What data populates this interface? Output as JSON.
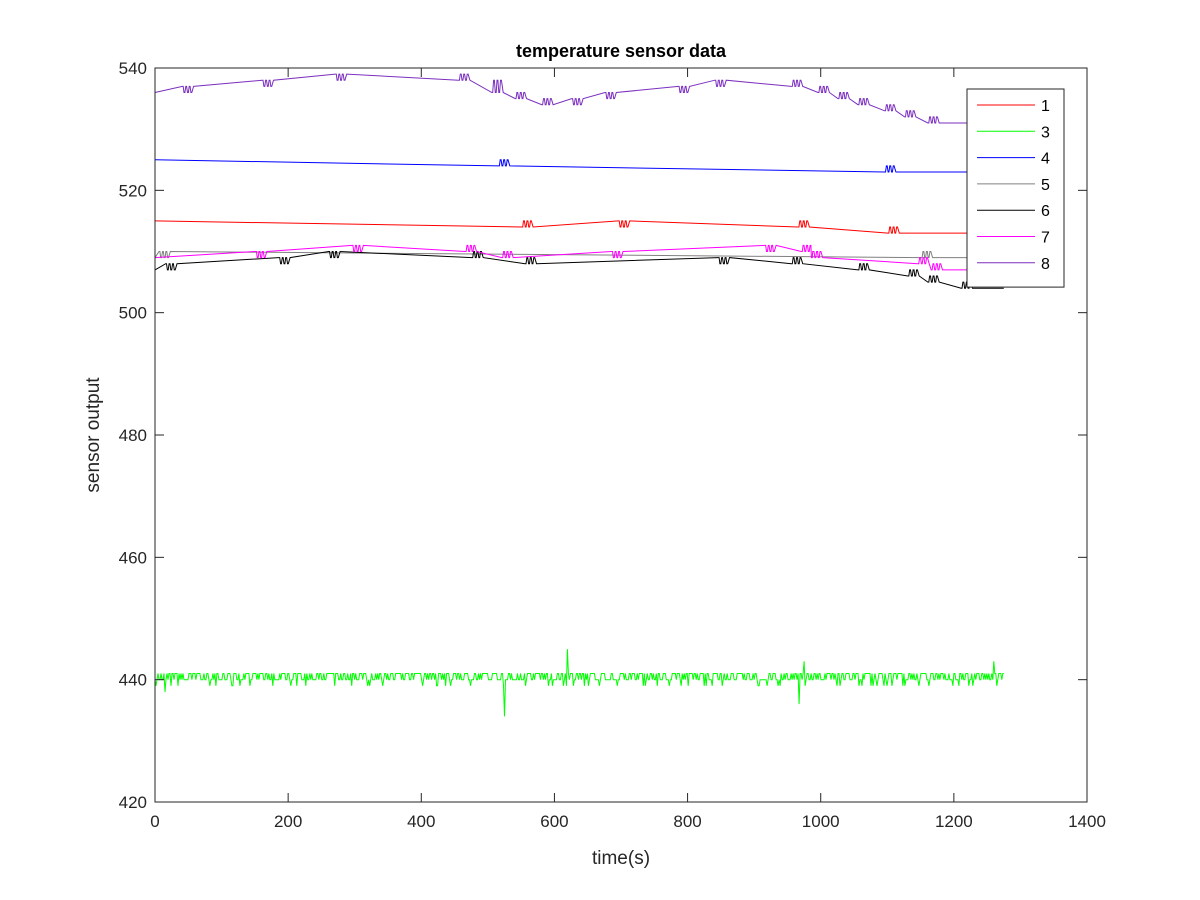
{
  "chart_data": {
    "type": "line",
    "title": "temperature sensor data",
    "xlabel": "time(s)",
    "ylabel": "sensor output",
    "xlim": [
      0,
      1400
    ],
    "ylim": [
      420,
      540
    ],
    "xticks": [
      0,
      200,
      400,
      600,
      800,
      1000,
      1200,
      1400
    ],
    "yticks": [
      420,
      440,
      460,
      480,
      500,
      520,
      540
    ],
    "grid": false,
    "legend_position": "top-right",
    "series": [
      {
        "name": "1",
        "color": "#ff0000",
        "points": [
          [
            0,
            515
          ],
          [
            565,
            515
          ],
          [
            568,
            514
          ],
          [
            710,
            514
          ],
          [
            713,
            515
          ],
          [
            980,
            515
          ],
          [
            983,
            514
          ],
          [
            1115,
            514
          ],
          [
            1118,
            513
          ],
          [
            1275,
            513
          ]
        ],
        "noise": {
          "x_from": 555,
          "x_to": 575,
          "delta": -1
        }
      },
      {
        "name": "3",
        "color": "#00ff00",
        "base": 441,
        "jitter_low": 439,
        "x_start": 0,
        "x_end": 1275,
        "spikes": [
          [
            15,
            438
          ],
          [
            355,
            437
          ],
          [
            460,
            437
          ],
          [
            525,
            434
          ],
          [
            620,
            445
          ],
          [
            760,
            445
          ],
          [
            898,
            433
          ],
          [
            968,
            436
          ],
          [
            975,
            443
          ],
          [
            1260,
            443
          ]
        ]
      },
      {
        "name": "4",
        "color": "#0000ff",
        "points": [
          [
            0,
            525
          ],
          [
            530,
            525
          ],
          [
            533,
            524
          ],
          [
            1110,
            524
          ],
          [
            1113,
            523
          ],
          [
            1275,
            523
          ]
        ]
      },
      {
        "name": "5",
        "color": "#808080",
        "points": [
          [
            0,
            509
          ],
          [
            20,
            509
          ],
          [
            23,
            510
          ],
          [
            1165,
            510
          ],
          [
            1168,
            509
          ],
          [
            1275,
            509
          ]
        ]
      },
      {
        "name": "6",
        "color": "#000000",
        "points": [
          [
            0,
            507
          ],
          [
            30,
            507
          ],
          [
            33,
            508
          ],
          [
            200,
            508
          ],
          [
            203,
            509
          ],
          [
            275,
            509
          ],
          [
            278,
            510
          ],
          [
            490,
            510
          ],
          [
            493,
            509
          ],
          [
            570,
            509
          ],
          [
            573,
            508
          ],
          [
            860,
            508
          ],
          [
            863,
            509
          ],
          [
            970,
            509
          ],
          [
            973,
            508
          ],
          [
            1070,
            508
          ],
          [
            1073,
            507
          ],
          [
            1145,
            507
          ],
          [
            1148,
            506
          ],
          [
            1175,
            506
          ],
          [
            1178,
            505
          ],
          [
            1225,
            505
          ],
          [
            1228,
            504
          ],
          [
            1275,
            504
          ]
        ]
      },
      {
        "name": "7",
        "color": "#ff00ff",
        "points": [
          [
            0,
            509
          ],
          [
            165,
            509
          ],
          [
            168,
            510
          ],
          [
            310,
            510
          ],
          [
            313,
            511
          ],
          [
            480,
            511
          ],
          [
            483,
            510
          ],
          [
            535,
            510
          ],
          [
            538,
            509
          ],
          [
            700,
            509
          ],
          [
            703,
            510
          ],
          [
            930,
            510
          ],
          [
            933,
            511
          ],
          [
            985,
            511
          ],
          [
            988,
            510
          ],
          [
            1000,
            510
          ],
          [
            1003,
            509
          ],
          [
            1160,
            509
          ],
          [
            1163,
            508
          ],
          [
            1180,
            508
          ],
          [
            1183,
            507
          ],
          [
            1275,
            507
          ]
        ]
      },
      {
        "name": "8",
        "color": "#7b2fbe",
        "points": [
          [
            0,
            536
          ],
          [
            55,
            536
          ],
          [
            58,
            537
          ],
          [
            175,
            537
          ],
          [
            178,
            538
          ],
          [
            285,
            538
          ],
          [
            288,
            539
          ],
          [
            470,
            539
          ],
          [
            473,
            538
          ],
          [
            520,
            538
          ],
          [
            523,
            536
          ],
          [
            555,
            536
          ],
          [
            558,
            535
          ],
          [
            595,
            535
          ],
          [
            598,
            534
          ],
          [
            640,
            534
          ],
          [
            643,
            535
          ],
          [
            690,
            535
          ],
          [
            693,
            536
          ],
          [
            800,
            536
          ],
          [
            803,
            537
          ],
          [
            855,
            537
          ],
          [
            858,
            538
          ],
          [
            970,
            538
          ],
          [
            973,
            537
          ],
          [
            1010,
            537
          ],
          [
            1013,
            536
          ],
          [
            1040,
            536
          ],
          [
            1043,
            535
          ],
          [
            1070,
            535
          ],
          [
            1073,
            534
          ],
          [
            1110,
            534
          ],
          [
            1113,
            533
          ],
          [
            1140,
            533
          ],
          [
            1143,
            532
          ],
          [
            1175,
            532
          ],
          [
            1178,
            531
          ],
          [
            1275,
            531
          ]
        ]
      }
    ]
  }
}
